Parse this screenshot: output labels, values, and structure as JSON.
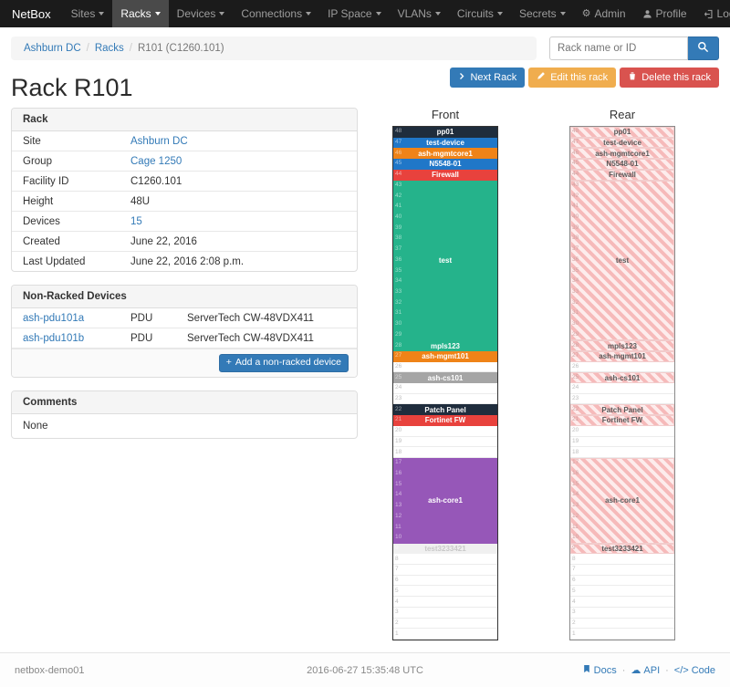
{
  "navbar": {
    "brand": "NetBox",
    "items": [
      {
        "label": "Sites"
      },
      {
        "label": "Racks"
      },
      {
        "label": "Devices"
      },
      {
        "label": "Connections"
      },
      {
        "label": "IP Space"
      },
      {
        "label": "VLANs"
      },
      {
        "label": "Circuits"
      },
      {
        "label": "Secrets"
      }
    ],
    "admin": "Admin",
    "profile": "Profile",
    "logout": "Log out"
  },
  "breadcrumb": {
    "site": "Ashburn DC",
    "section": "Racks",
    "current": "R101 (C1260.101)"
  },
  "search": {
    "placeholder": "Rack name or ID"
  },
  "actions": {
    "next_rack": "Next Rack",
    "edit_rack": "Edit this rack",
    "delete_rack": "Delete this rack"
  },
  "page_title": "Rack R101",
  "rack_panel": {
    "title": "Rack",
    "rows": [
      {
        "label": "Site",
        "value": "Ashburn DC",
        "link": true
      },
      {
        "label": "Group",
        "value": "Cage 1250",
        "link": true
      },
      {
        "label": "Facility ID",
        "value": "C1260.101"
      },
      {
        "label": "Height",
        "value": "48U"
      },
      {
        "label": "Devices",
        "value": "15",
        "link": true
      },
      {
        "label": "Created",
        "value": "June 22, 2016"
      },
      {
        "label": "Last Updated",
        "value": "June 22, 2016 2:08 p.m."
      }
    ]
  },
  "nonracked_panel": {
    "title": "Non-Racked Devices",
    "devices": [
      {
        "name": "ash-pdu101a",
        "role": "PDU",
        "model": "ServerTech CW-48VDX411"
      },
      {
        "name": "ash-pdu101b",
        "role": "PDU",
        "model": "ServerTech CW-48VDX411"
      }
    ],
    "add_button": "Add a non-racked device"
  },
  "comments_panel": {
    "title": "Comments",
    "body": "None"
  },
  "elevations": {
    "units": 48,
    "front_title": "Front",
    "rear_title": "Rear",
    "blocks": [
      {
        "name": "pp01",
        "top_u": 48,
        "height": 1,
        "bg": "#1f2d3d",
        "fg": "#ffffff"
      },
      {
        "name": "test-device",
        "top_u": 47,
        "height": 1,
        "bg": "#2077c8",
        "fg": "#ffffff"
      },
      {
        "name": "ash-mgmtcore1",
        "top_u": 46,
        "height": 1,
        "bg": "#ef8318",
        "fg": "#ffffff"
      },
      {
        "name": "N5548-01",
        "top_u": 45,
        "height": 1,
        "bg": "#2077c8",
        "fg": "#ffffff"
      },
      {
        "name": "Firewall",
        "top_u": 44,
        "height": 1,
        "bg": "#e8423d",
        "fg": "#ffffff"
      },
      {
        "name": "test",
        "top_u": 43,
        "height": 15,
        "bg": "#25b38b",
        "fg": "#ffffff"
      },
      {
        "name": "mpls123",
        "top_u": 28,
        "height": 1,
        "bg": "#25b38b",
        "fg": "#ffffff"
      },
      {
        "name": "ash-mgmt101",
        "top_u": 27,
        "height": 1,
        "bg": "#ef8318",
        "fg": "#ffffff"
      },
      {
        "name": "ash-cs101",
        "top_u": 25,
        "height": 1,
        "bg": "#a5a5a5",
        "fg": "#ffffff"
      },
      {
        "name": "Patch Panel",
        "top_u": 22,
        "height": 1,
        "bg": "#1f2d3d",
        "fg": "#ffffff"
      },
      {
        "name": "Fortinet FW",
        "top_u": 21,
        "height": 1,
        "bg": "#e8423d",
        "fg": "#ffffff"
      },
      {
        "name": "ash-core1",
        "top_u": 17,
        "height": 8,
        "bg": "#9657b8",
        "fg": "#ffffff"
      },
      {
        "name": "test3233421",
        "top_u": 9,
        "height": 1,
        "bg": "#f0f0f0",
        "fg": "#c9c9c9"
      }
    ]
  },
  "footer": {
    "hostname": "netbox-demo01",
    "timestamp": "2016-06-27 15:35:48 UTC",
    "links": [
      "Docs",
      "API",
      "Code"
    ],
    "separator": "·"
  },
  "icons": {
    "gear": "⚙",
    "cloud": "☁",
    "code": "</>",
    "plus": "+"
  },
  "colors": {
    "primary": "#337ab7",
    "warning": "#f0ad4e",
    "danger": "#d9534f"
  }
}
